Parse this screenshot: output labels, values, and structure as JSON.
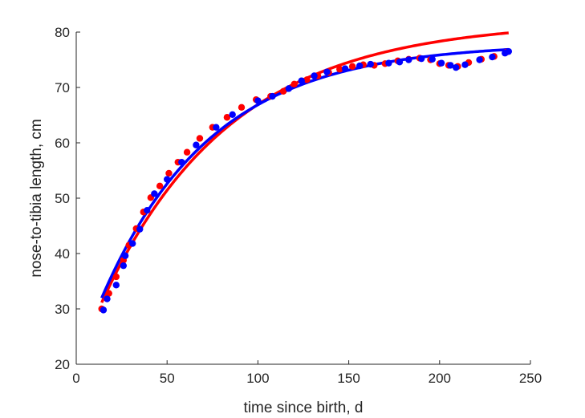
{
  "chart_data": {
    "type": "scatter",
    "title": "",
    "xlabel": "time since birth, d",
    "ylabel": "nose-to-tibia length, cm",
    "xlim": [
      0,
      250
    ],
    "ylim": [
      20,
      80
    ],
    "xticks": [
      0,
      50,
      100,
      150,
      200,
      250
    ],
    "yticks": [
      20,
      30,
      40,
      50,
      60,
      70,
      80
    ],
    "xtick_labels": [
      "0",
      "50",
      "100",
      "150",
      "200",
      "250"
    ],
    "ytick_labels": [
      "20",
      "30",
      "40",
      "50",
      "60",
      "70",
      "80"
    ],
    "grid": false,
    "legend": "none",
    "series": [
      {
        "kind": "points",
        "color": "#ff0000",
        "points": [
          [
            14,
            30.0
          ],
          [
            18,
            32.8
          ],
          [
            22,
            35.8
          ],
          [
            26,
            38.8
          ],
          [
            29,
            41.5
          ],
          [
            33,
            44.5
          ],
          [
            37,
            47.5
          ],
          [
            41,
            50.1
          ],
          [
            46,
            52.2
          ],
          [
            51,
            54.5
          ],
          [
            56,
            56.5
          ],
          [
            61,
            58.3
          ],
          [
            68,
            60.8
          ],
          [
            75,
            62.8
          ],
          [
            83,
            64.6
          ],
          [
            91,
            66.4
          ],
          [
            99,
            67.8
          ],
          [
            107,
            68.4
          ],
          [
            114,
            69.3
          ],
          [
            120,
            70.6
          ],
          [
            127,
            71.4
          ],
          [
            133,
            72.1
          ],
          [
            139,
            72.7
          ],
          [
            145,
            73.3
          ],
          [
            152,
            73.8
          ],
          [
            158,
            74.1
          ],
          [
            164,
            74.0
          ],
          [
            170,
            74.3
          ],
          [
            177,
            74.8
          ],
          [
            183,
            75.1
          ],
          [
            189,
            75.3
          ],
          [
            195,
            75.0
          ],
          [
            200,
            74.3
          ],
          [
            205,
            74.0
          ],
          [
            210,
            73.8
          ],
          [
            216,
            74.5
          ],
          [
            223,
            75.1
          ],
          [
            230,
            75.6
          ],
          [
            237,
            76.4
          ]
        ]
      },
      {
        "kind": "points",
        "color": "#0000ff",
        "points": [
          [
            15,
            29.8
          ],
          [
            17,
            31.8
          ],
          [
            22,
            34.3
          ],
          [
            26,
            37.8
          ],
          [
            27,
            39.6
          ],
          [
            31,
            41.8
          ],
          [
            35,
            44.4
          ],
          [
            39,
            47.8
          ],
          [
            43,
            50.8
          ],
          [
            50,
            53.4
          ],
          [
            58,
            56.5
          ],
          [
            66,
            59.6
          ],
          [
            77,
            62.8
          ],
          [
            86,
            65.1
          ],
          [
            100,
            67.6
          ],
          [
            108,
            68.4
          ],
          [
            117,
            69.8
          ],
          [
            124,
            71.2
          ],
          [
            131,
            72.1
          ],
          [
            138,
            72.8
          ],
          [
            148,
            73.4
          ],
          [
            156,
            73.9
          ],
          [
            162,
            74.2
          ],
          [
            172,
            74.4
          ],
          [
            178,
            74.6
          ],
          [
            183,
            75.0
          ],
          [
            190,
            75.2
          ],
          [
            196,
            75.1
          ],
          [
            201,
            74.4
          ],
          [
            206,
            74.0
          ],
          [
            209,
            73.6
          ],
          [
            214,
            74.1
          ],
          [
            222,
            75.0
          ],
          [
            229,
            75.5
          ],
          [
            236,
            76.2
          ],
          [
            238,
            76.5
          ]
        ]
      },
      {
        "kind": "curve",
        "color": "#ff0000",
        "asymptote": 82.0,
        "initial": 20.0,
        "rate": 0.01414,
        "x_range": [
          14,
          238
        ]
      },
      {
        "kind": "curve",
        "color": "#0000ff",
        "asymptote": 78.0,
        "initial": 20.0,
        "rate": 0.01651,
        "x_range": [
          14,
          238
        ]
      }
    ]
  }
}
